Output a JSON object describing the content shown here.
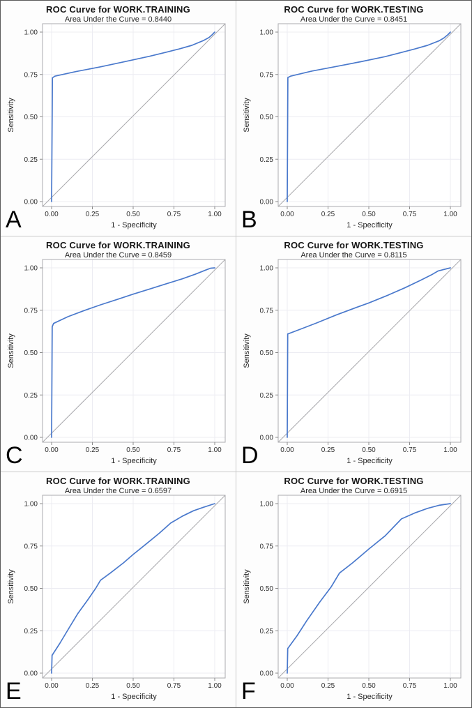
{
  "figure_name": "ROC curve panels",
  "colors": {
    "curve": "#4A79CC",
    "diagonal": "#A9A9AD",
    "grid": "#ECECF2",
    "frame": "#ABABAF",
    "tick": "#8A8A8A",
    "tick_text": "#303030",
    "axis_text": "#262626",
    "wall": "#FFFFFF"
  },
  "axis": {
    "ticks": [
      0,
      0.25,
      0.5,
      0.75,
      1.0
    ],
    "tick_labels": [
      "0.00",
      "0.25",
      "0.50",
      "0.75",
      "1.00"
    ]
  },
  "chart_data": [
    {
      "panel_label": "A",
      "type": "line",
      "title": "ROC Curve for WORK.TRAINING",
      "subtitle": "Area Under the Curve = 0.8440",
      "auc": 0.844,
      "xlabel": "1 - Specificity",
      "ylabel": "Sensitivity",
      "xlim": [
        0,
        1
      ],
      "ylim": [
        0,
        1
      ],
      "grid": true,
      "diagonal_reference": true,
      "roc_points": [
        [
          0,
          0
        ],
        [
          0.005,
          0.73
        ],
        [
          0.02,
          0.74
        ],
        [
          0.15,
          0.767
        ],
        [
          0.3,
          0.795
        ],
        [
          0.45,
          0.826
        ],
        [
          0.6,
          0.857
        ],
        [
          0.71,
          0.883
        ],
        [
          0.78,
          0.9
        ],
        [
          0.86,
          0.922
        ],
        [
          0.93,
          0.95
        ],
        [
          0.965,
          0.968
        ],
        [
          0.985,
          0.985
        ],
        [
          1,
          1
        ]
      ]
    },
    {
      "panel_label": "B",
      "type": "line",
      "title": "ROC Curve for WORK.TESTING",
      "subtitle": "Area Under the Curve = 0.8451",
      "auc": 0.8451,
      "xlabel": "1 - Specificity",
      "ylabel": "Sensitivity",
      "xlim": [
        0,
        1
      ],
      "ylim": [
        0,
        1
      ],
      "grid": true,
      "diagonal_reference": true,
      "roc_points": [
        [
          0,
          0
        ],
        [
          0.004,
          0.732
        ],
        [
          0.02,
          0.74
        ],
        [
          0.15,
          0.77
        ],
        [
          0.3,
          0.797
        ],
        [
          0.45,
          0.825
        ],
        [
          0.6,
          0.855
        ],
        [
          0.7,
          0.88
        ],
        [
          0.78,
          0.9
        ],
        [
          0.86,
          0.922
        ],
        [
          0.93,
          0.948
        ],
        [
          0.96,
          0.965
        ],
        [
          0.985,
          0.985
        ],
        [
          1,
          1
        ]
      ]
    },
    {
      "panel_label": "C",
      "type": "line",
      "title": "ROC Curve for WORK.TRAINING",
      "subtitle": "Area Under the Curve = 0.8459",
      "auc": 0.8459,
      "xlabel": "1 - Specificity",
      "ylabel": "Sensitivity",
      "xlim": [
        0,
        1
      ],
      "ylim": [
        0,
        1
      ],
      "grid": true,
      "diagonal_reference": true,
      "roc_points": [
        [
          0,
          0
        ],
        [
          0.004,
          0.652
        ],
        [
          0.012,
          0.672
        ],
        [
          0.1,
          0.712
        ],
        [
          0.2,
          0.748
        ],
        [
          0.3,
          0.782
        ],
        [
          0.4,
          0.813
        ],
        [
          0.5,
          0.845
        ],
        [
          0.6,
          0.875
        ],
        [
          0.7,
          0.905
        ],
        [
          0.8,
          0.935
        ],
        [
          0.88,
          0.962
        ],
        [
          0.94,
          0.985
        ],
        [
          0.975,
          0.998
        ],
        [
          1,
          1
        ]
      ]
    },
    {
      "panel_label": "D",
      "type": "line",
      "title": "ROC Curve for WORK.TESTING",
      "subtitle": "Area Under the Curve = 0.8115",
      "auc": 0.8115,
      "xlabel": "1 - Specificity",
      "ylabel": "Sensitivity",
      "xlim": [
        0,
        1
      ],
      "ylim": [
        0,
        1
      ],
      "grid": true,
      "diagonal_reference": true,
      "roc_points": [
        [
          0,
          0
        ],
        [
          0.003,
          0.61
        ],
        [
          0.08,
          0.638
        ],
        [
          0.18,
          0.675
        ],
        [
          0.3,
          0.722
        ],
        [
          0.42,
          0.765
        ],
        [
          0.5,
          0.793
        ],
        [
          0.62,
          0.84
        ],
        [
          0.72,
          0.882
        ],
        [
          0.82,
          0.928
        ],
        [
          0.89,
          0.962
        ],
        [
          0.925,
          0.982
        ],
        [
          0.95,
          0.988
        ],
        [
          1,
          1
        ]
      ]
    },
    {
      "panel_label": "E",
      "type": "line",
      "title": "ROC Curve for WORK.TRAINING",
      "subtitle": "Area Under the Curve = 0.6597",
      "auc": 0.6597,
      "xlabel": "1 - Specificity",
      "ylabel": "Sensitivity",
      "xlim": [
        0,
        1
      ],
      "ylim": [
        0,
        1
      ],
      "grid": true,
      "diagonal_reference": true,
      "roc_points": [
        [
          0,
          0
        ],
        [
          0.003,
          0.105
        ],
        [
          0.05,
          0.175
        ],
        [
          0.1,
          0.255
        ],
        [
          0.16,
          0.35
        ],
        [
          0.22,
          0.43
        ],
        [
          0.27,
          0.5
        ],
        [
          0.3,
          0.548
        ],
        [
          0.36,
          0.59
        ],
        [
          0.44,
          0.65
        ],
        [
          0.5,
          0.7
        ],
        [
          0.58,
          0.762
        ],
        [
          0.66,
          0.825
        ],
        [
          0.73,
          0.885
        ],
        [
          0.8,
          0.925
        ],
        [
          0.87,
          0.958
        ],
        [
          0.93,
          0.978
        ],
        [
          1,
          1
        ]
      ]
    },
    {
      "panel_label": "F",
      "type": "line",
      "title": "ROC Curve for WORK.TESTING",
      "subtitle": "Area Under the Curve = 0.6915",
      "auc": 0.6915,
      "xlabel": "1 - Specificity",
      "ylabel": "Sensitivity",
      "xlim": [
        0,
        1
      ],
      "ylim": [
        0,
        1
      ],
      "grid": true,
      "diagonal_reference": true,
      "roc_points": [
        [
          0,
          0
        ],
        [
          0.003,
          0.145
        ],
        [
          0.06,
          0.22
        ],
        [
          0.12,
          0.31
        ],
        [
          0.2,
          0.42
        ],
        [
          0.27,
          0.51
        ],
        [
          0.32,
          0.59
        ],
        [
          0.4,
          0.65
        ],
        [
          0.5,
          0.732
        ],
        [
          0.6,
          0.81
        ],
        [
          0.7,
          0.91
        ],
        [
          0.78,
          0.944
        ],
        [
          0.86,
          0.972
        ],
        [
          0.93,
          0.99
        ],
        [
          1,
          1
        ]
      ]
    }
  ]
}
